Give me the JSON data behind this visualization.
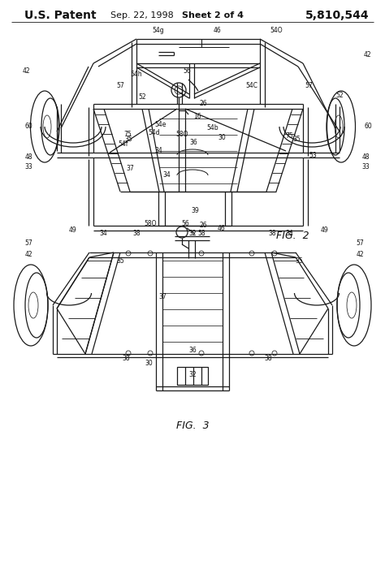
{
  "bg_color": "#ffffff",
  "fig_width": 4.74,
  "fig_height": 6.96,
  "dpi": 100,
  "header_left": "U.S. Patent",
  "header_center_left": "Sep. 22, 1998",
  "header_center_right": "Sheet 2 of 4",
  "header_right": "5,810,544",
  "fig2_label": "FIG.  2",
  "fig3_label": "FIG.  3",
  "lc": "#1a1a1a",
  "lw": 0.9
}
